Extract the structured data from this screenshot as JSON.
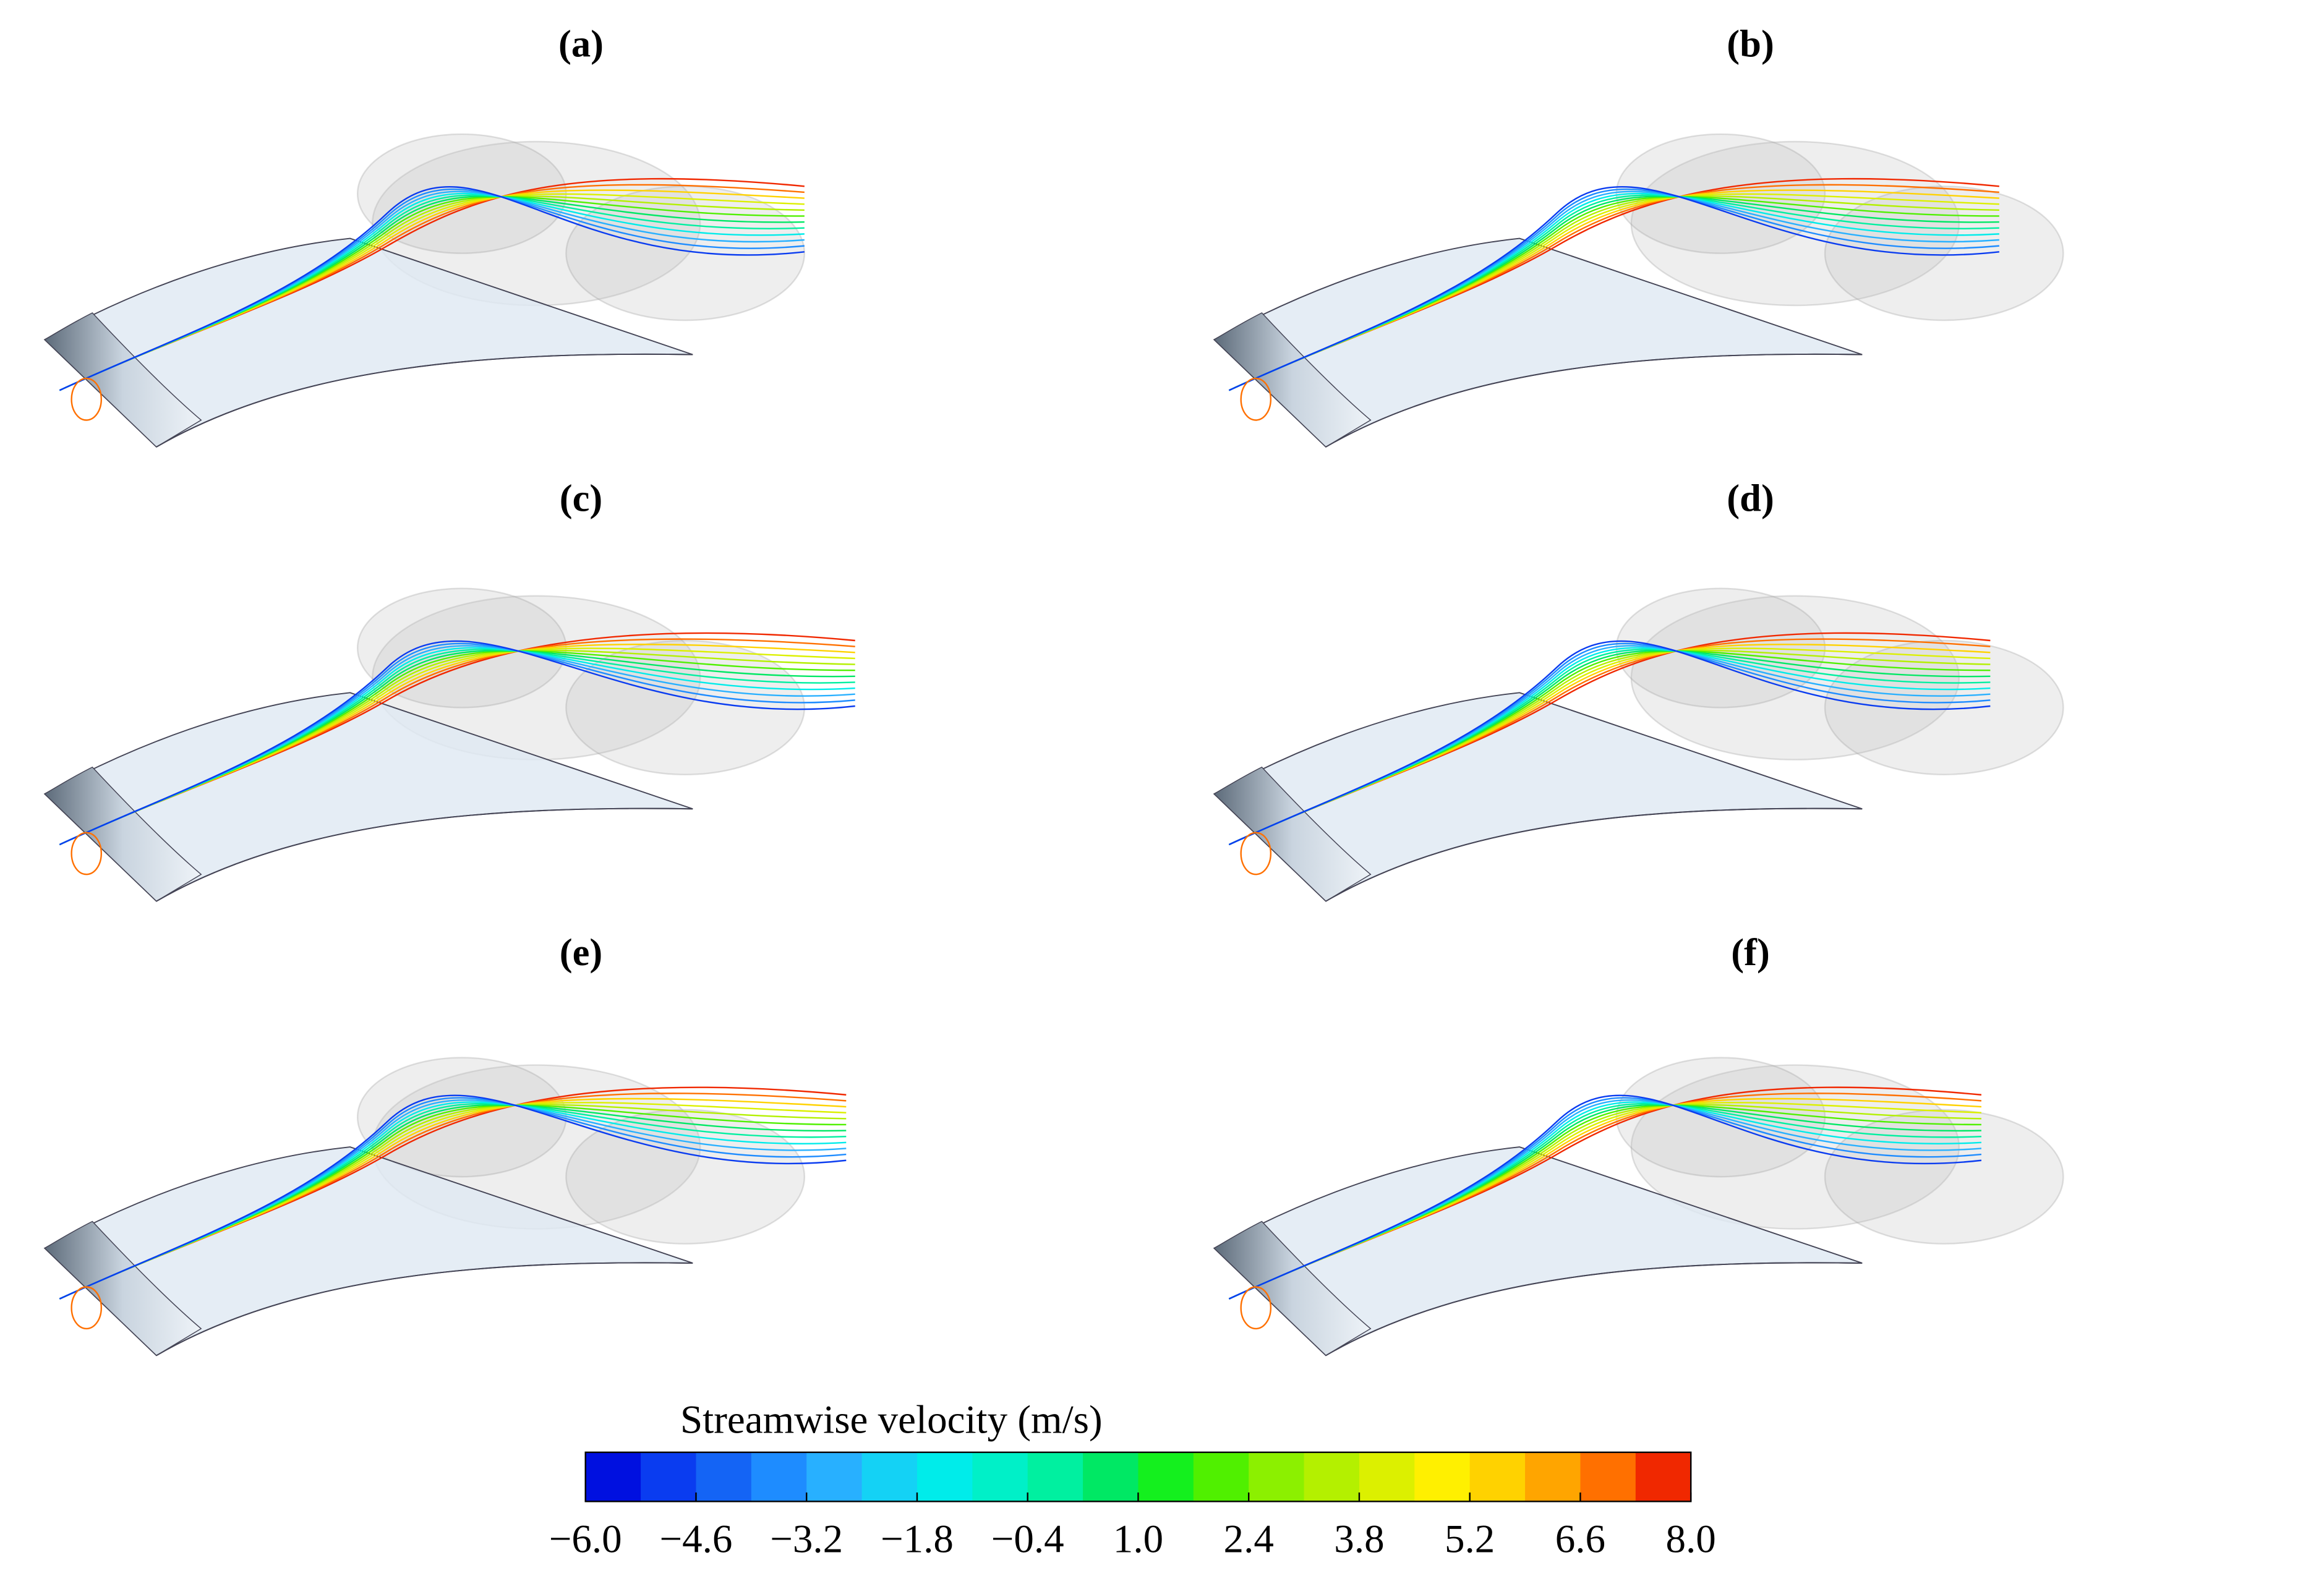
{
  "panels": [
    {
      "label": "(a)"
    },
    {
      "label": "(b)"
    },
    {
      "label": "(c)"
    },
    {
      "label": "(d)"
    },
    {
      "label": "(e)"
    },
    {
      "label": "(f)"
    }
  ],
  "colorbar": {
    "title": "Streamwise velocity (m/s)",
    "range": [
      -6,
      8
    ],
    "ticks": [
      {
        "value": -6,
        "label": "−6.0"
      },
      {
        "value": -4.6,
        "label": "−4.6"
      },
      {
        "value": -3.2,
        "label": "−3.2"
      },
      {
        "value": -1.8,
        "label": "−1.8"
      },
      {
        "value": -0.4,
        "label": "−0.4"
      },
      {
        "value": 1,
        "label": "1.0"
      },
      {
        "value": 2.4,
        "label": "2.4"
      },
      {
        "value": 3.8,
        "label": "3.8"
      },
      {
        "value": 5.2,
        "label": "5.2"
      },
      {
        "value": 6.6,
        "label": "6.6"
      },
      {
        "value": 8,
        "label": "8.0"
      }
    ],
    "colors": [
      "#0010e0",
      "#0a3cf0",
      "#1464f5",
      "#1e8cff",
      "#28b0ff",
      "#14d2f5",
      "#00ecea",
      "#00f0c8",
      "#00f0a0",
      "#00e864",
      "#14f01e",
      "#50f000",
      "#8cf000",
      "#b4f000",
      "#dcf000",
      "#fff000",
      "#ffd200",
      "#ffa500",
      "#ff7000",
      "#f02800"
    ]
  }
}
